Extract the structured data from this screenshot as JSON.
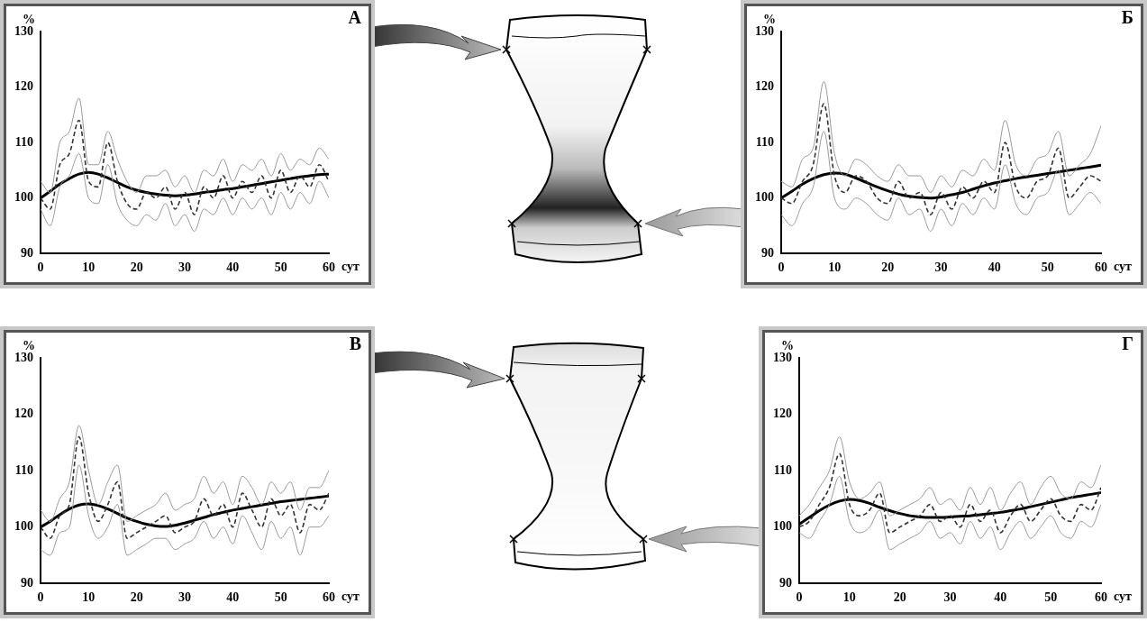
{
  "chart_data": [
    {
      "type": "line",
      "title": "А",
      "x_label": "сут",
      "y_label": "%",
      "x": [
        0,
        2,
        4,
        6,
        8,
        10,
        12,
        14,
        16,
        18,
        20,
        22,
        24,
        26,
        28,
        30,
        32,
        34,
        36,
        38,
        40,
        42,
        44,
        46,
        48,
        50,
        52,
        54,
        56,
        58,
        60
      ],
      "xlim": [
        0,
        60
      ],
      "xticks": [
        0,
        10,
        20,
        30,
        40,
        50,
        60
      ],
      "ylim": [
        90,
        130
      ],
      "yticks": [
        90,
        100,
        110,
        120,
        130
      ],
      "grid": false,
      "series": [
        {
          "color": "#000000",
          "line_style": "bold",
          "values": [
            100,
            101.2,
            102.5,
            103.5,
            104.3,
            104.6,
            104.3,
            103.6,
            102.8,
            102,
            101.4,
            101,
            100.7,
            100.5,
            100.4,
            100.5,
            100.7,
            101,
            101.2,
            101.5,
            101.7,
            102,
            102.3,
            102.6,
            102.9,
            103.2,
            103.5,
            103.8,
            104,
            104.2,
            104.3
          ]
        },
        {
          "color": "#333333",
          "line_style": "dashed",
          "values": [
            100,
            98,
            106,
            108,
            114,
            103,
            102,
            110,
            103,
            99,
            98,
            101,
            100,
            102,
            98,
            101,
            97,
            102,
            100,
            104,
            100,
            103,
            101,
            104,
            100,
            105,
            101,
            104,
            102,
            106,
            103
          ]
        },
        {
          "color": "#999999",
          "line_style": "thin",
          "values": [
            103,
            101,
            110,
            112,
            118,
            106,
            106,
            112,
            107,
            103,
            101,
            104,
            104,
            105,
            102,
            104,
            101,
            105,
            104,
            107,
            103,
            106,
            105,
            107,
            104,
            108,
            105,
            107,
            106,
            109,
            107
          ]
        },
        {
          "color": "#999999",
          "line_style": "thin",
          "values": [
            98,
            95,
            102,
            104,
            108,
            100,
            99,
            106,
            99,
            96,
            95,
            97,
            96,
            99,
            95,
            97,
            94,
            98,
            97,
            100,
            97,
            100,
            98,
            100,
            97,
            101,
            98,
            101,
            99,
            103,
            100
          ]
        }
      ]
    },
    {
      "type": "line",
      "title": "Б",
      "x_label": "сут",
      "y_label": "%",
      "x": [
        0,
        2,
        4,
        6,
        8,
        10,
        12,
        14,
        16,
        18,
        20,
        22,
        24,
        26,
        28,
        30,
        32,
        34,
        36,
        38,
        40,
        42,
        44,
        46,
        48,
        50,
        52,
        54,
        56,
        58,
        60
      ],
      "xlim": [
        0,
        60
      ],
      "xticks": [
        0,
        10,
        20,
        30,
        40,
        50,
        60
      ],
      "ylim": [
        90,
        130
      ],
      "yticks": [
        90,
        100,
        110,
        120,
        130
      ],
      "grid": false,
      "series": [
        {
          "color": "#000000",
          "line_style": "bold",
          "values": [
            100,
            101.2,
            102.5,
            103.5,
            104.2,
            104.5,
            104.3,
            103.6,
            102.8,
            102,
            101.3,
            100.7,
            100.3,
            100.1,
            100,
            100.2,
            100.6,
            101,
            101.6,
            102.2,
            102.7,
            103.1,
            103.5,
            103.8,
            104.1,
            104.4,
            104.7,
            105,
            105.3,
            105.6,
            105.9
          ]
        },
        {
          "color": "#333333",
          "line_style": "dashed",
          "values": [
            100,
            99,
            103,
            106,
            117,
            104,
            101,
            104,
            103,
            100,
            99,
            103,
            100,
            101,
            97,
            101,
            98,
            102,
            100,
            103,
            101,
            110,
            102,
            100,
            103,
            104,
            109,
            100,
            102,
            104,
            103
          ]
        },
        {
          "color": "#999999",
          "line_style": "thin",
          "values": [
            103,
            102,
            107,
            109,
            121,
            108,
            104,
            107,
            106,
            104,
            103,
            106,
            104,
            104,
            101,
            104,
            102,
            105,
            104,
            107,
            105,
            114,
            106,
            104,
            107,
            108,
            112,
            104,
            106,
            108,
            113
          ]
        },
        {
          "color": "#999999",
          "line_style": "thin",
          "values": [
            97,
            95,
            99,
            102,
            112,
            100,
            98,
            100,
            99,
            97,
            96,
            100,
            97,
            98,
            94,
            98,
            95,
            99,
            97,
            100,
            98,
            106,
            99,
            97,
            100,
            101,
            105,
            97,
            99,
            101,
            99
          ]
        }
      ]
    },
    {
      "type": "line",
      "title": "В",
      "x_label": "сут",
      "y_label": "%",
      "x": [
        0,
        2,
        4,
        6,
        8,
        10,
        12,
        14,
        16,
        18,
        20,
        22,
        24,
        26,
        28,
        30,
        32,
        34,
        36,
        38,
        40,
        42,
        44,
        46,
        48,
        50,
        52,
        54,
        56,
        58,
        60
      ],
      "xlim": [
        0,
        60
      ],
      "xticks": [
        0,
        10,
        20,
        30,
        40,
        50,
        60
      ],
      "ylim": [
        90,
        130
      ],
      "yticks": [
        90,
        100,
        110,
        120,
        130
      ],
      "grid": false,
      "series": [
        {
          "color": "#000000",
          "line_style": "bold",
          "values": [
            100,
            101,
            102.2,
            103.2,
            103.9,
            104.1,
            103.8,
            103.2,
            102.4,
            101.6,
            101,
            100.5,
            100.2,
            100.1,
            100.3,
            100.7,
            101.2,
            101.7,
            102.2,
            102.6,
            103,
            103.3,
            103.6,
            103.9,
            104.2,
            104.5,
            104.7,
            104.9,
            105.1,
            105.3,
            105.5
          ]
        },
        {
          "color": "#333333",
          "line_style": "dashed",
          "values": [
            100,
            98,
            102,
            104,
            116,
            106,
            101,
            104,
            108,
            98,
            99,
            100,
            101,
            102,
            99,
            100,
            101,
            105,
            102,
            104,
            100,
            106,
            103,
            100,
            105,
            102,
            104,
            99,
            104,
            103,
            106
          ]
        },
        {
          "color": "#999999",
          "line_style": "thin",
          "values": [
            103,
            101,
            105,
            108,
            118,
            110,
            104,
            108,
            111,
            101,
            102,
            103,
            104,
            106,
            103,
            104,
            105,
            109,
            106,
            108,
            104,
            109,
            107,
            104,
            108,
            106,
            108,
            103,
            107,
            107,
            110
          ]
        },
        {
          "color": "#999999",
          "line_style": "thin",
          "values": [
            96,
            95,
            99,
            100,
            111,
            102,
            98,
            100,
            104,
            95,
            96,
            97,
            98,
            98,
            96,
            97,
            98,
            101,
            98,
            100,
            97,
            102,
            99,
            96,
            101,
            98,
            100,
            95,
            100,
            100,
            102
          ]
        }
      ]
    },
    {
      "type": "line",
      "title": "Г",
      "x_label": "сут",
      "y_label": "%",
      "x": [
        0,
        2,
        4,
        6,
        8,
        10,
        12,
        14,
        16,
        18,
        20,
        22,
        24,
        26,
        28,
        30,
        32,
        34,
        36,
        38,
        40,
        42,
        44,
        46,
        48,
        50,
        52,
        54,
        56,
        58,
        60
      ],
      "xlim": [
        0,
        60
      ],
      "xticks": [
        0,
        10,
        20,
        30,
        40,
        50,
        60
      ],
      "ylim": [
        90,
        130
      ],
      "yticks": [
        90,
        100,
        110,
        120,
        130
      ],
      "grid": false,
      "series": [
        {
          "color": "#000000",
          "line_style": "bold",
          "values": [
            100.5,
            101.7,
            102.9,
            103.9,
            104.6,
            104.9,
            104.7,
            104.2,
            103.5,
            102.9,
            102.4,
            102,
            101.8,
            101.7,
            101.7,
            101.8,
            101.9,
            102,
            102.2,
            102.4,
            102.6,
            102.9,
            103.2,
            103.6,
            104,
            104.4,
            104.8,
            105.2,
            105.5,
            105.8,
            106.1
          ]
        },
        {
          "color": "#333333",
          "line_style": "dashed",
          "values": [
            100,
            101,
            104,
            107,
            113,
            104,
            102,
            103,
            106,
            99,
            100,
            101,
            102,
            104,
            101,
            102,
            100,
            104,
            101,
            103,
            99,
            102,
            104,
            101,
            103,
            105,
            102,
            101,
            104,
            103,
            107
          ]
        },
        {
          "color": "#999999",
          "line_style": "thin",
          "values": [
            102,
            104,
            107,
            110,
            116,
            108,
            105,
            106,
            108,
            102,
            103,
            104,
            105,
            107,
            104,
            105,
            103,
            107,
            104,
            107,
            103,
            106,
            108,
            104,
            107,
            109,
            106,
            105,
            108,
            107,
            111
          ]
        },
        {
          "color": "#999999",
          "line_style": "thin",
          "values": [
            99,
            98,
            101,
            104,
            109,
            101,
            99,
            100,
            103,
            96,
            97,
            98,
            99,
            101,
            98,
            99,
            97,
            101,
            98,
            100,
            96,
            99,
            101,
            98,
            100,
            102,
            99,
            98,
            101,
            100,
            104
          ]
        }
      ]
    }
  ]
}
